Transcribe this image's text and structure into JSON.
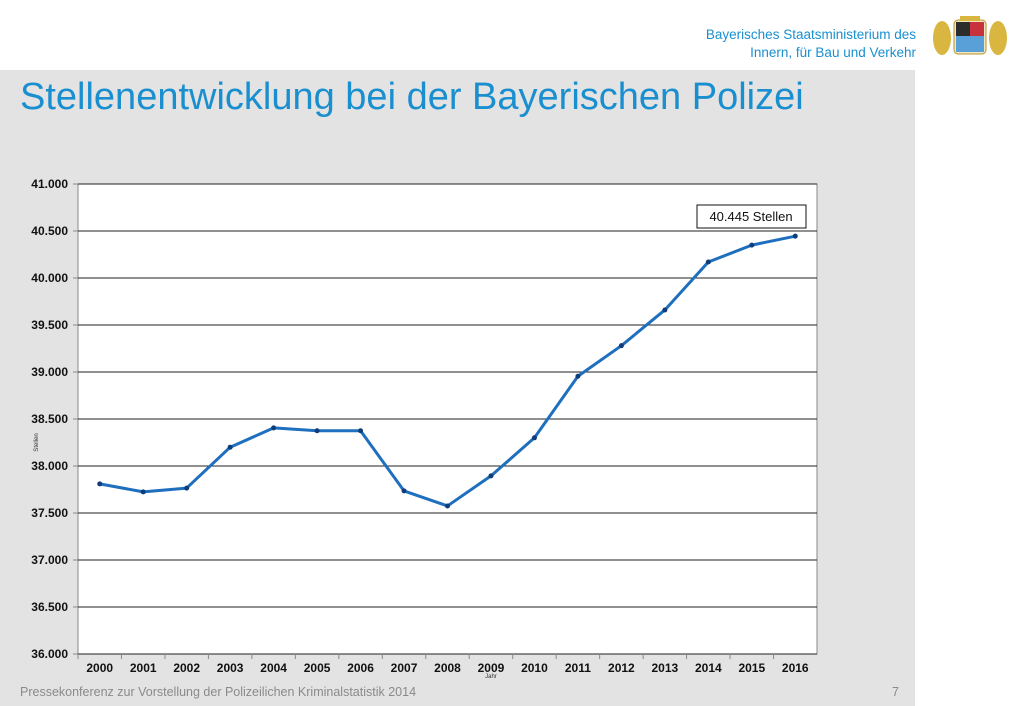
{
  "header": {
    "ministry_line1": "Bayerisches Staatsministerium des",
    "ministry_line2": "Innern, für Bau und Verkehr",
    "logo_icon": "bavarian-coat-of-arms-icon"
  },
  "title": "Stellenentwicklung bei der Bayerischen Polizei",
  "footer": {
    "text": "Pressekonferenz zur Vorstellung der Polizeilichen Kriminalstatistik 2014",
    "page": "7"
  },
  "chart_data": {
    "type": "line",
    "title": "",
    "xlabel": "Jahr",
    "ylabel": "Stellen",
    "categories": [
      "2000",
      "2001",
      "2002",
      "2003",
      "2004",
      "2005",
      "2006",
      "2007",
      "2008",
      "2009",
      "2010",
      "2011",
      "2012",
      "2013",
      "2014",
      "2015",
      "2016"
    ],
    "series": [
      {
        "name": "Stellen",
        "color": "#1f6fbf",
        "values": [
          37810,
          37725,
          37765,
          38200,
          38405,
          38375,
          38375,
          37735,
          37575,
          37895,
          38300,
          38955,
          39280,
          39660,
          40170,
          40350,
          40445
        ]
      }
    ],
    "ylim": [
      36000,
      41000
    ],
    "yticks": [
      36000,
      36500,
      37000,
      37500,
      38000,
      38500,
      39000,
      39500,
      40000,
      40500,
      41000
    ],
    "ytick_labels": [
      "36.000",
      "36.500",
      "37.000",
      "37.500",
      "38.000",
      "38.500",
      "39.000",
      "39.500",
      "40.000",
      "40.500",
      "41.000"
    ],
    "grid": true,
    "annotation": "40.445 Stellen"
  }
}
